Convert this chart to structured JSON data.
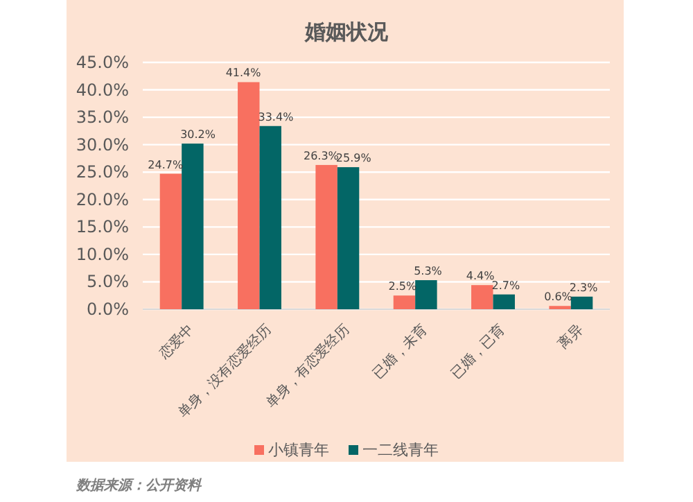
{
  "chart_data": {
    "type": "bar",
    "title": "婚姻状况",
    "categories": [
      "恋爱中",
      "单身，没有恋爱经历",
      "单身，有恋爱经历",
      "已婚，未育",
      "已婚，已育",
      "离异"
    ],
    "series": [
      {
        "name": "小镇青年",
        "color": "#f87060",
        "values": [
          24.7,
          41.4,
          26.3,
          2.5,
          4.4,
          0.6
        ],
        "value_labels": [
          "24.7%",
          "41.4%",
          "26.3%",
          "2.5%",
          "4.4%",
          "0.6%"
        ]
      },
      {
        "name": "一二线青年",
        "color": "#036666",
        "values": [
          30.2,
          33.4,
          25.9,
          5.3,
          2.7,
          2.3
        ],
        "value_labels": [
          "30.2%",
          "33.4%",
          "25.9%",
          "5.3%",
          "2.7%",
          "2.3%"
        ]
      }
    ],
    "ylim": [
      0,
      45
    ],
    "yticks": [
      {
        "value": 0,
        "label": "0.0%"
      },
      {
        "value": 5,
        "label": "5.0%"
      },
      {
        "value": 10,
        "label": "10.0%"
      },
      {
        "value": 15,
        "label": "15.0%"
      },
      {
        "value": 20,
        "label": "20.0%"
      },
      {
        "value": 25,
        "label": "25.0%"
      },
      {
        "value": 30,
        "label": "30.0%"
      },
      {
        "value": 35,
        "label": "35.0%"
      },
      {
        "value": 40,
        "label": "40.0%"
      },
      {
        "value": 45,
        "label": "45.0%"
      }
    ],
    "grid": "y",
    "legend": "bottom",
    "annotations": [
      "数据来源：公开资料"
    ]
  }
}
